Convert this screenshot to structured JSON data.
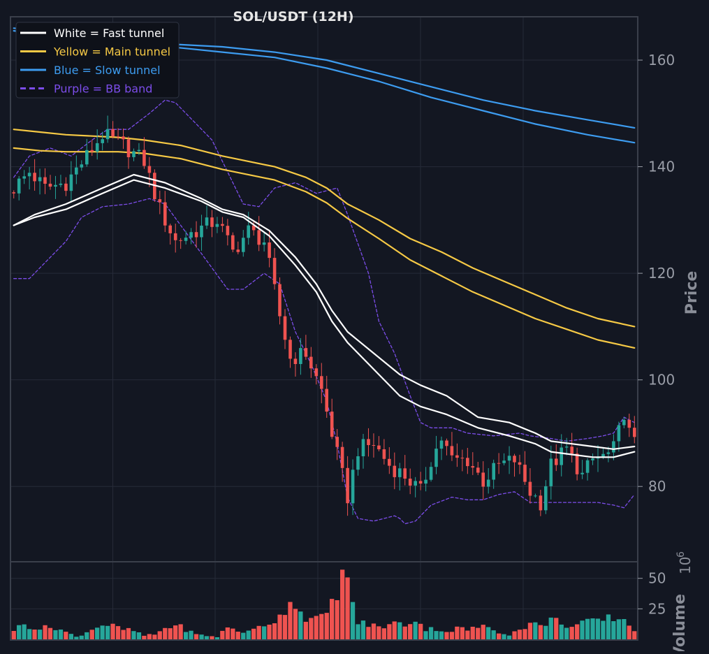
{
  "chart_data": {
    "type": "candlestick",
    "title": "SOL/USDT (12H)",
    "price_axis": {
      "label": "Price",
      "range": [
        66,
        168
      ],
      "ticks": [
        80,
        100,
        120,
        140,
        160
      ],
      "tick_labels": [
        "80",
        "100",
        "120",
        "140",
        "160"
      ]
    },
    "volume_axis": {
      "label": "Volume",
      "unit_label": "10",
      "unit_exponent": "6",
      "range": [
        0,
        63
      ],
      "ticks": [
        25,
        50
      ],
      "tick_labels": [
        "25",
        "50"
      ]
    },
    "grid": true,
    "legend": {
      "position": "top-left",
      "entries": [
        {
          "label": "White = Fast tunnel",
          "color": "#ffffff",
          "style": "solid"
        },
        {
          "label": "Yellow = Main tunnel",
          "color": "#f6c945",
          "style": "solid"
        },
        {
          "label": "Blue = Slow tunnel",
          "color": "#3d9cf0",
          "style": "solid"
        },
        {
          "label": "Purple = BB band",
          "color": "#7c4dea",
          "style": "dashed"
        }
      ]
    },
    "colors": {
      "background": "#131722",
      "up": "#26a69a",
      "down": "#ef5350",
      "grid": "#262b38",
      "axis": "#3a3f4b",
      "text": "#9a9ea8",
      "title": "#e6e6e6"
    },
    "candles": {
      "count": 120,
      "anchor_closes": [
        [
          0,
          136
        ],
        [
          3,
          139
        ],
        [
          6,
          136
        ],
        [
          10,
          137
        ],
        [
          14,
          142
        ],
        [
          17,
          146
        ],
        [
          21,
          144
        ],
        [
          25,
          141
        ],
        [
          28,
          132
        ],
        [
          31,
          126
        ],
        [
          35,
          128
        ],
        [
          39,
          130
        ],
        [
          42,
          124
        ],
        [
          45,
          128
        ],
        [
          48,
          126
        ],
        [
          51,
          112
        ],
        [
          53,
          104
        ],
        [
          56,
          105
        ],
        [
          59,
          98
        ],
        [
          62,
          86
        ],
        [
          64,
          78
        ],
        [
          66,
          87
        ],
        [
          69,
          88
        ],
        [
          72,
          84
        ],
        [
          75,
          82
        ],
        [
          78,
          79
        ],
        [
          80,
          85
        ],
        [
          82,
          89
        ],
        [
          84,
          85
        ],
        [
          87,
          85
        ],
        [
          90,
          81
        ],
        [
          93,
          84
        ],
        [
          96,
          85
        ],
        [
          99,
          79
        ],
        [
          101,
          77
        ],
        [
          103,
          84
        ],
        [
          106,
          87
        ],
        [
          109,
          82
        ],
        [
          111,
          85
        ],
        [
          114,
          86
        ],
        [
          116,
          88
        ],
        [
          117,
          92
        ],
        [
          119,
          88
        ]
      ]
    },
    "overlays": {
      "fast_tunnel": {
        "upper": [
          [
            0,
            129
          ],
          [
            4,
            131
          ],
          [
            10,
            133
          ],
          [
            17,
            136
          ],
          [
            23,
            138.5
          ],
          [
            29,
            137
          ],
          [
            36,
            134
          ],
          [
            40,
            132
          ],
          [
            44,
            131
          ],
          [
            49,
            128
          ],
          [
            54,
            123
          ],
          [
            58,
            118
          ],
          [
            61,
            113
          ],
          [
            64,
            109
          ],
          [
            69,
            105
          ],
          [
            74,
            101
          ],
          [
            78,
            99
          ],
          [
            83,
            97
          ],
          [
            89,
            93
          ],
          [
            95,
            92
          ],
          [
            100,
            90
          ],
          [
            103,
            88.5
          ],
          [
            107,
            88
          ],
          [
            111,
            87.5
          ],
          [
            115,
            87
          ],
          [
            119,
            87.5
          ]
        ],
        "lower": [
          [
            0,
            129
          ],
          [
            4,
            130.5
          ],
          [
            10,
            132
          ],
          [
            17,
            135
          ],
          [
            23,
            137.5
          ],
          [
            29,
            136
          ],
          [
            36,
            133.5
          ],
          [
            40,
            131.5
          ],
          [
            44,
            130.5
          ],
          [
            49,
            127
          ],
          [
            54,
            121.5
          ],
          [
            58,
            116.5
          ],
          [
            61,
            111
          ],
          [
            64,
            107
          ],
          [
            69,
            102
          ],
          [
            74,
            97
          ],
          [
            78,
            95
          ],
          [
            83,
            93.5
          ],
          [
            89,
            91
          ],
          [
            95,
            89.5
          ],
          [
            100,
            88
          ],
          [
            103,
            86.5
          ],
          [
            107,
            86
          ],
          [
            111,
            85.5
          ],
          [
            115,
            85.5
          ],
          [
            119,
            86.5
          ]
        ]
      },
      "main_tunnel": {
        "upper": [
          [
            0,
            147
          ],
          [
            5,
            146.5
          ],
          [
            10,
            146
          ],
          [
            20,
            145.5
          ],
          [
            25,
            145
          ],
          [
            32,
            144
          ],
          [
            40,
            142
          ],
          [
            50,
            140
          ],
          [
            56,
            138
          ],
          [
            60,
            136
          ],
          [
            64,
            133
          ],
          [
            70,
            130
          ],
          [
            76,
            126.5
          ],
          [
            82,
            124
          ],
          [
            88,
            121
          ],
          [
            94,
            118.5
          ],
          [
            100,
            116
          ],
          [
            106,
            113.5
          ],
          [
            112,
            111.5
          ],
          [
            119,
            110
          ]
        ],
        "lower": [
          [
            0,
            143.5
          ],
          [
            5,
            143
          ],
          [
            10,
            142.8
          ],
          [
            20,
            142.8
          ],
          [
            25,
            142.5
          ],
          [
            32,
            141.5
          ],
          [
            40,
            139.5
          ],
          [
            50,
            137.5
          ],
          [
            56,
            135.3
          ],
          [
            60,
            133.2
          ],
          [
            64,
            130.3
          ],
          [
            70,
            126.5
          ],
          [
            76,
            122.5
          ],
          [
            82,
            119.5
          ],
          [
            88,
            116.5
          ],
          [
            94,
            114
          ],
          [
            100,
            111.5
          ],
          [
            106,
            109.5
          ],
          [
            112,
            107.5
          ],
          [
            119,
            106
          ]
        ]
      },
      "slow_tunnel": {
        "upper": [
          [
            0,
            166
          ],
          [
            10,
            165
          ],
          [
            20,
            164
          ],
          [
            30,
            163
          ],
          [
            40,
            162.5
          ],
          [
            50,
            161.5
          ],
          [
            60,
            160
          ],
          [
            70,
            157.5
          ],
          [
            80,
            155
          ],
          [
            90,
            152.5
          ],
          [
            100,
            150.5
          ],
          [
            110,
            148.8
          ],
          [
            119,
            147.3
          ]
        ],
        "lower": [
          [
            0,
            165.5
          ],
          [
            10,
            164.5
          ],
          [
            20,
            163.5
          ],
          [
            30,
            162.5
          ],
          [
            40,
            161.5
          ],
          [
            50,
            160.5
          ],
          [
            60,
            158.5
          ],
          [
            70,
            156
          ],
          [
            80,
            153
          ],
          [
            90,
            150.5
          ],
          [
            100,
            148
          ],
          [
            110,
            146
          ],
          [
            119,
            144.5
          ]
        ]
      },
      "bb_band": {
        "upper": [
          [
            0,
            138
          ],
          [
            3,
            142
          ],
          [
            7,
            143.5
          ],
          [
            11,
            142
          ],
          [
            15,
            145
          ],
          [
            18,
            147
          ],
          [
            22,
            147
          ],
          [
            26,
            150
          ],
          [
            29,
            152.5
          ],
          [
            31,
            152
          ],
          [
            35,
            148
          ],
          [
            38,
            145
          ],
          [
            41,
            139
          ],
          [
            44,
            133
          ],
          [
            47,
            132.5
          ],
          [
            50,
            136
          ],
          [
            54,
            137
          ],
          [
            58,
            135
          ],
          [
            62,
            136
          ],
          [
            64,
            131
          ],
          [
            68,
            120
          ],
          [
            70,
            111
          ],
          [
            73,
            105
          ],
          [
            76,
            97
          ],
          [
            78,
            92
          ],
          [
            80,
            91
          ],
          [
            84,
            91
          ],
          [
            87,
            90
          ],
          [
            92,
            89.5
          ],
          [
            97,
            90
          ],
          [
            99,
            89.5
          ],
          [
            103,
            89
          ],
          [
            106,
            88.5
          ],
          [
            110,
            89
          ],
          [
            113,
            89.5
          ],
          [
            115,
            90
          ],
          [
            117,
            93
          ],
          [
            119,
            92
          ]
        ],
        "lower": [
          [
            0,
            119
          ],
          [
            3,
            119
          ],
          [
            7,
            123
          ],
          [
            10,
            126
          ],
          [
            13,
            130.5
          ],
          [
            17,
            132.5
          ],
          [
            22,
            133
          ],
          [
            26,
            134
          ],
          [
            29,
            133
          ],
          [
            32,
            129
          ],
          [
            35,
            125
          ],
          [
            38,
            121
          ],
          [
            41,
            117
          ],
          [
            44,
            117
          ],
          [
            48,
            120
          ],
          [
            51,
            118
          ],
          [
            54,
            109
          ],
          [
            57,
            103
          ],
          [
            60,
            96
          ],
          [
            62,
            88
          ],
          [
            64,
            78
          ],
          [
            66,
            74
          ],
          [
            69,
            73.5
          ],
          [
            73,
            74.5
          ],
          [
            74,
            74
          ],
          [
            75,
            73
          ],
          [
            77,
            73.5
          ],
          [
            80,
            76.5
          ],
          [
            84,
            78
          ],
          [
            87,
            77.5
          ],
          [
            90,
            77.5
          ],
          [
            93,
            78.5
          ],
          [
            96,
            79
          ],
          [
            99,
            77
          ],
          [
            103,
            77
          ],
          [
            106,
            77
          ],
          [
            109,
            77
          ],
          [
            112,
            77
          ],
          [
            115,
            76.5
          ],
          [
            117,
            76
          ],
          [
            119,
            78.5
          ]
        ]
      }
    },
    "volume": {
      "unit": "millions",
      "anchor_values": [
        [
          0,
          8
        ],
        [
          2,
          12
        ],
        [
          5,
          9
        ],
        [
          8,
          10
        ],
        [
          10,
          6
        ],
        [
          12,
          2
        ],
        [
          14,
          6
        ],
        [
          16,
          11
        ],
        [
          18,
          12
        ],
        [
          21,
          8
        ],
        [
          23,
          7
        ],
        [
          25,
          3
        ],
        [
          27,
          4
        ],
        [
          29,
          9
        ],
        [
          31,
          12
        ],
        [
          33,
          8
        ],
        [
          35,
          4
        ],
        [
          37,
          3
        ],
        [
          39,
          2
        ],
        [
          41,
          10
        ],
        [
          43,
          7
        ],
        [
          45,
          6
        ],
        [
          47,
          10
        ],
        [
          49,
          14
        ],
        [
          51,
          18
        ],
        [
          53,
          34
        ],
        [
          55,
          22
        ],
        [
          57,
          16
        ],
        [
          59,
          17
        ],
        [
          61,
          28
        ],
        [
          62,
          42
        ],
        [
          63,
          55
        ],
        [
          64,
          43
        ],
        [
          65,
          30
        ],
        [
          66,
          14
        ],
        [
          68,
          12
        ],
        [
          70,
          10
        ],
        [
          73,
          13
        ],
        [
          75,
          12
        ],
        [
          77,
          17
        ],
        [
          79,
          8
        ],
        [
          81,
          9
        ],
        [
          83,
          6
        ],
        [
          85,
          9
        ],
        [
          87,
          8
        ],
        [
          89,
          10
        ],
        [
          91,
          10
        ],
        [
          93,
          6
        ],
        [
          95,
          4
        ],
        [
          97,
          8
        ],
        [
          99,
          13
        ],
        [
          101,
          11
        ],
        [
          103,
          16
        ],
        [
          105,
          14
        ],
        [
          107,
          10
        ],
        [
          109,
          14
        ],
        [
          111,
          14
        ],
        [
          113,
          16
        ],
        [
          115,
          18
        ],
        [
          117,
          16
        ],
        [
          119,
          8
        ]
      ]
    }
  }
}
